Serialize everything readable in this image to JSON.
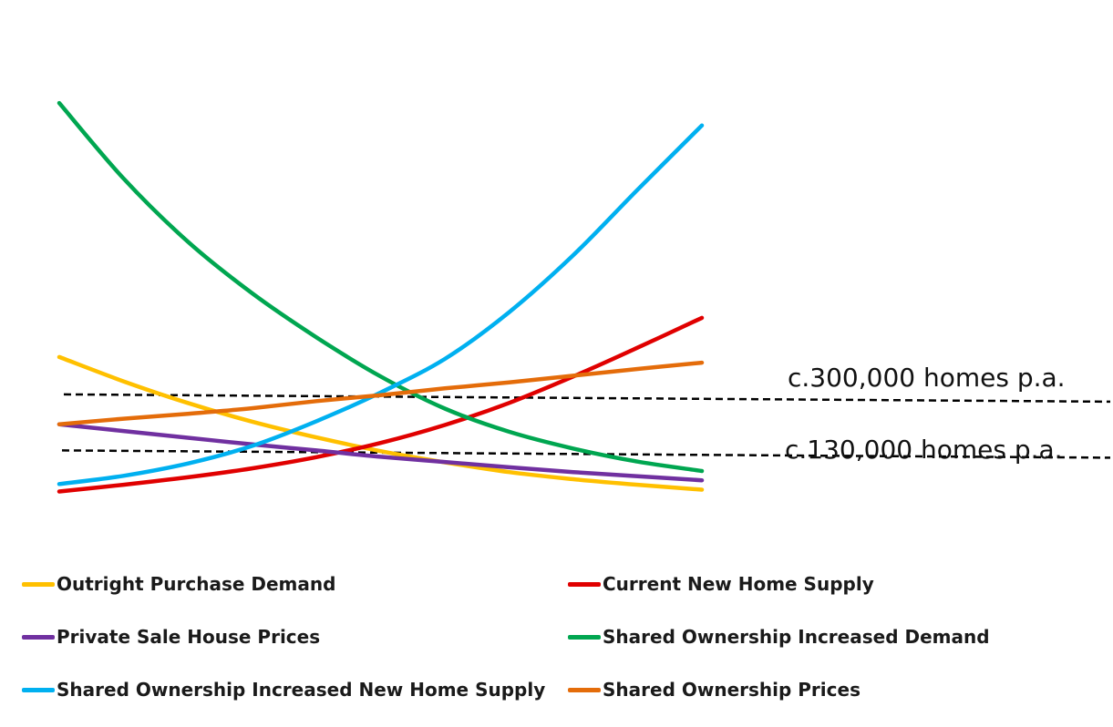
{
  "chart_data": {
    "type": "line",
    "title": "",
    "xlabel": "",
    "ylabel": "",
    "grid": false,
    "legend_position": "bottom",
    "x": [
      0,
      1,
      2,
      3,
      4,
      5,
      6,
      7,
      8,
      9,
      10
    ],
    "xlim": [
      0,
      10
    ],
    "ylim": [
      0,
      100
    ],
    "series": [
      {
        "name": "Outright Purchase Demand",
        "color": "#FFC000",
        "values": [
          41,
          34.5,
          28.7,
          23.7,
          19.5,
          15.8,
          12.8,
          10.2,
          8.3,
          6.8,
          5.5
        ]
      },
      {
        "name": "Current New Home Supply",
        "color": "#E00000",
        "values": [
          5,
          6.8,
          8.8,
          11.2,
          14.2,
          18,
          22.8,
          28.7,
          35.8,
          43.5,
          51.5
        ]
      },
      {
        "name": "Private Sale House Prices",
        "color": "#7030A0",
        "values": [
          23,
          21.2,
          19.4,
          17.6,
          16,
          14.3,
          12.9,
          11.5,
          10.2,
          9.1,
          8
        ]
      },
      {
        "name": "Shared Ownership Increased Demand",
        "color": "#00A650",
        "values": [
          109,
          88.8,
          71.9,
          58.1,
          46.3,
          35.8,
          27.2,
          21,
          16.5,
          13,
          10.5
        ]
      },
      {
        "name": "Shared Ownership Increased New Home Supply",
        "color": "#00B0F0",
        "values": [
          7,
          9.2,
          12.5,
          17.2,
          23.8,
          31.5,
          40.5,
          53,
          68.3,
          85.8,
          103
        ]
      },
      {
        "name": "Shared Ownership Prices",
        "color": "#E46C0A",
        "values": [
          23,
          24.5,
          25.8,
          27.3,
          29.2,
          30.8,
          32.6,
          34.2,
          36,
          37.8,
          39.5
        ]
      }
    ],
    "reference_lines": [
      {
        "label": "c.300,000 homes p.a.",
        "y": 31
      },
      {
        "label": "c.130,000 homes p.a.",
        "y": 16
      }
    ]
  }
}
